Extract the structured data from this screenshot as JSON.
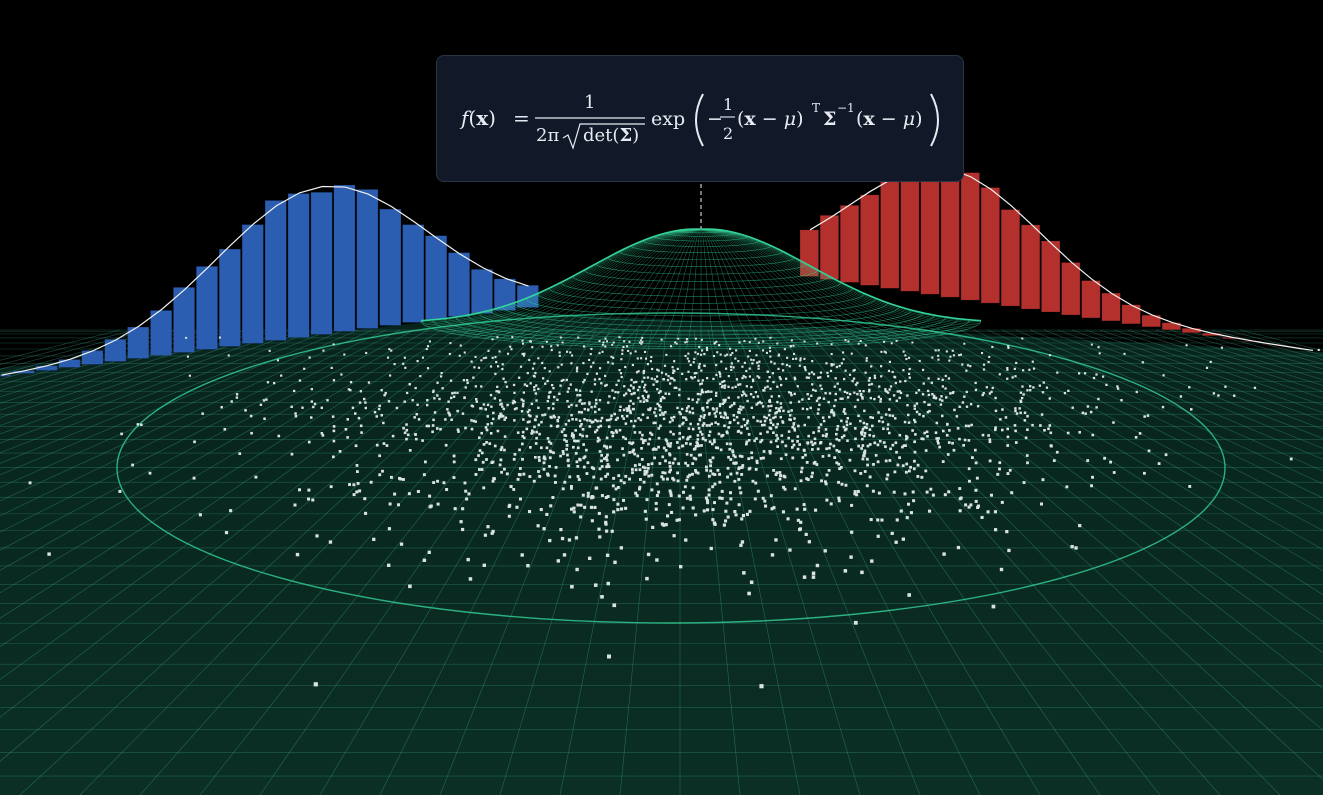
{
  "formula": {
    "lhs_f": "f",
    "lhs_open": "(",
    "lhs_x": "x",
    "lhs_close": ")",
    "equals": "=",
    "numerator": "1",
    "denom_two_pi": "2π",
    "denom_det": "det(",
    "denom_sigma": "Σ",
    "denom_det_close": ")",
    "exp_label": "exp",
    "minus": "−",
    "half_num": "1",
    "half_den": "2",
    "term1_open": "(",
    "term1_x": "x",
    "term1_minus": " − ",
    "term1_mu": "μ",
    "term1_close": ")",
    "transpose": "T",
    "sigma": "Σ",
    "inverse": "−1",
    "term2_open": "(",
    "term2_x": "x",
    "term2_minus": " − ",
    "term2_mu": "μ",
    "term2_close": ")"
  },
  "colors": {
    "background": "#000000",
    "grid": "#3fae92",
    "surface": "#34d399",
    "x_marginal": "#2b5db0",
    "y_marginal": "#b3302c",
    "samples": "#d9e4e0",
    "formula_panel": "#111827"
  },
  "chart_data": {
    "type": "scatter",
    "description_type": "bivariate-normal-3d",
    "series": [
      {
        "kind": "marginal-histogram",
        "color": "#2b5db0"
      },
      {
        "kind": "marginal-histogram",
        "color": "#b3302c"
      },
      {
        "kind": "density-surface",
        "color": "#34d399"
      },
      {
        "kind": "samples",
        "color": "#d9e4e0"
      },
      {
        "kind": "contour-ellipse",
        "color": "#34d399"
      }
    ]
  }
}
